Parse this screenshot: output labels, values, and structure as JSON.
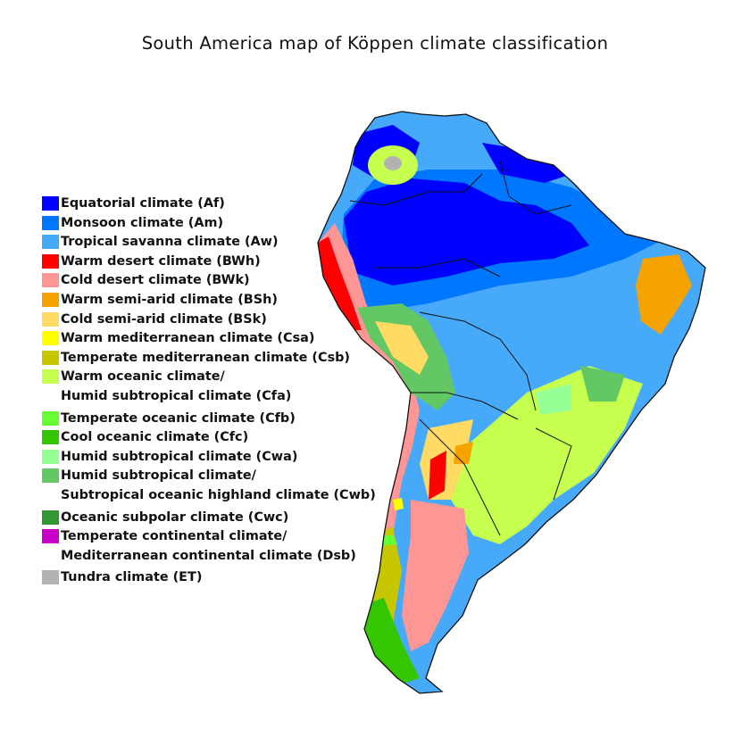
{
  "title": "South America map of Köppen climate classification",
  "legend": [
    {
      "color": "#0000fe",
      "lines": [
        "Equatorial climate (Af)"
      ]
    },
    {
      "color": "#0077ff",
      "lines": [
        "Monsoon climate (Am)"
      ]
    },
    {
      "color": "#46a9fa",
      "lines": [
        "Tropical savanna climate (Aw)"
      ]
    },
    {
      "color": "#fe0000",
      "lines": [
        "Warm desert climate (BWh)"
      ]
    },
    {
      "color": "#fe9695",
      "lines": [
        "Cold desert climate (BWk)"
      ]
    },
    {
      "color": "#f5a301",
      "lines": [
        "Warm semi-arid climate (BSh)"
      ]
    },
    {
      "color": "#ffdb63",
      "lines": [
        "Cold semi-arid climate (BSk)"
      ]
    },
    {
      "color": "#ffff00",
      "lines": [
        "Warm mediterranean climate (Csa)"
      ]
    },
    {
      "color": "#c6c700",
      "lines": [
        "Temperate mediterranean climate (Csb)"
      ]
    },
    {
      "color": "#c6ff4e",
      "lines": [
        "Warm oceanic climate/",
        "Humid subtropical climate (Cfa)"
      ]
    },
    {
      "color": "#66ff33",
      "lines": [
        "Temperate oceanic climate (Cfb)"
      ]
    },
    {
      "color": "#33c701",
      "lines": [
        "Cool oceanic climate (Cfc)"
      ]
    },
    {
      "color": "#96ff96",
      "lines": [
        "Humid subtropical climate (Cwa)"
      ]
    },
    {
      "color": "#63c764",
      "lines": [
        "Humid subtropical climate/",
        "Subtropical oceanic highland climate (Cwb)"
      ]
    },
    {
      "color": "#329633",
      "lines": [
        "Oceanic subpolar climate (Cwc)"
      ]
    },
    {
      "color": "#c800c8",
      "lines": [
        "Temperate continental climate/",
        "Mediterranean continental climate (Dsb)"
      ]
    },
    {
      "color": "#b2b2b2",
      "lines": [
        "Tundra climate (ET)"
      ]
    }
  ]
}
